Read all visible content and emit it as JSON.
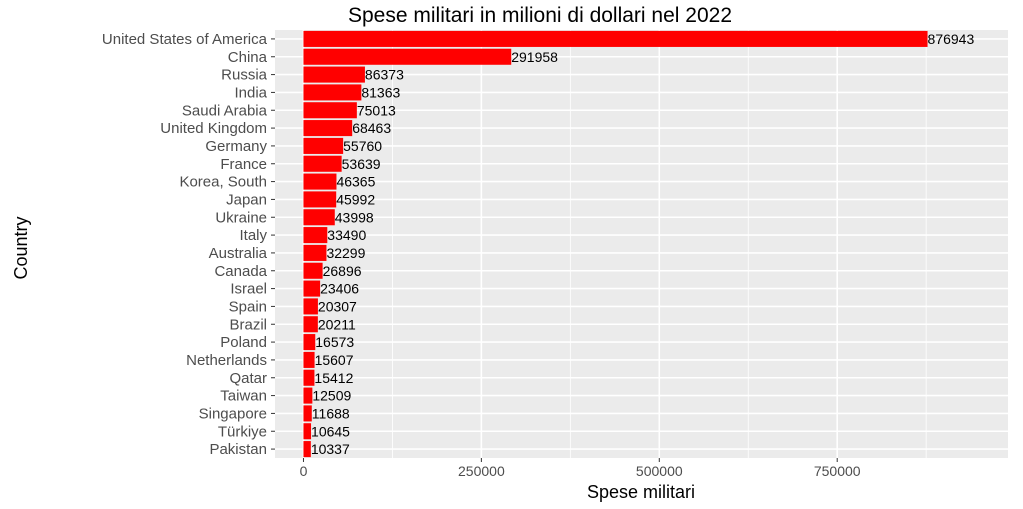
{
  "chart_data": {
    "type": "bar",
    "orientation": "horizontal",
    "title": "Spese militari in milioni di dollari nel 2022",
    "xlabel": "Spese militari",
    "ylabel": "Country",
    "xlim": [
      -40000,
      990000
    ],
    "xticks": [
      0,
      250000,
      500000,
      750000
    ],
    "xtick_labels": [
      "0",
      "250000",
      "500000",
      "750000"
    ],
    "grid": true,
    "bar_color": "#ff0000",
    "panel_color": "#ebebeb",
    "categories": [
      "United States of America",
      "China",
      "Russia",
      "India",
      "Saudi Arabia",
      "United Kingdom",
      "Germany",
      "France",
      "Korea, South",
      "Japan",
      "Ukraine",
      "Italy",
      "Australia",
      "Canada",
      "Israel",
      "Spain",
      "Brazil",
      "Poland",
      "Netherlands",
      "Qatar",
      "Taiwan",
      "Singapore",
      "Türkiye",
      "Pakistan"
    ],
    "values": [
      876943,
      291958,
      86373,
      81363,
      75013,
      68463,
      55760,
      53639,
      46365,
      45992,
      43998,
      33490,
      32299,
      26896,
      23406,
      20307,
      20211,
      16573,
      15607,
      15412,
      12509,
      11688,
      10645,
      10337
    ],
    "value_labels": [
      "876943",
      "291958",
      "86373",
      "81363",
      "75013",
      "68463",
      "55760",
      "53639",
      "46365",
      "45992",
      "43998",
      "33490",
      "32299",
      "26896",
      "23406",
      "20307",
      "20211",
      "16573",
      "15607",
      "15412",
      "12509",
      "11688",
      "10645",
      "10337"
    ]
  }
}
